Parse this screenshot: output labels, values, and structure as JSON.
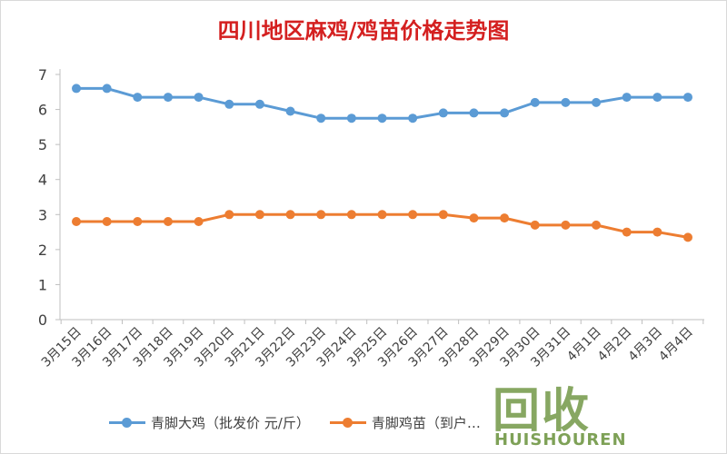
{
  "chart_data": {
    "type": "line",
    "title": "四川地区麻鸡/鸡苗价格走势图",
    "categories": [
      "3月15日",
      "3月16日",
      "3月17日",
      "3月18日",
      "3月19日",
      "3月20日",
      "3月21日",
      "3月22日",
      "3月23日",
      "3月24日",
      "3月25日",
      "3月26日",
      "3月27日",
      "3月28日",
      "3月29日",
      "3月30日",
      "3月31日",
      "4月1日",
      "4月2日",
      "4月3日",
      "4月4日"
    ],
    "series": [
      {
        "name": "青脚大鸡（批发价 元/斤）",
        "color": "#5b9bd5",
        "values": [
          6.6,
          6.6,
          6.35,
          6.35,
          6.35,
          6.15,
          6.15,
          5.95,
          5.75,
          5.75,
          5.75,
          5.75,
          5.9,
          5.9,
          5.9,
          6.2,
          6.2,
          6.2,
          6.35,
          6.35,
          6.35
        ]
      },
      {
        "name": "青脚鸡苗（到户…",
        "color": "#ed7d31",
        "values": [
          2.8,
          2.8,
          2.8,
          2.8,
          2.8,
          3.0,
          3.0,
          3.0,
          3.0,
          3.0,
          3.0,
          3.0,
          3.0,
          2.9,
          2.9,
          2.7,
          2.7,
          2.7,
          2.5,
          2.5,
          2.35
        ]
      }
    ],
    "ylim": [
      0,
      7
    ],
    "yticks": [
      0,
      1,
      2,
      3,
      4,
      5,
      6,
      7
    ],
    "xlabel": "",
    "ylabel": "",
    "grid": false,
    "legend": "bottom"
  },
  "watermark": {
    "mark": "回收",
    "text": "HUISHOUREN"
  }
}
